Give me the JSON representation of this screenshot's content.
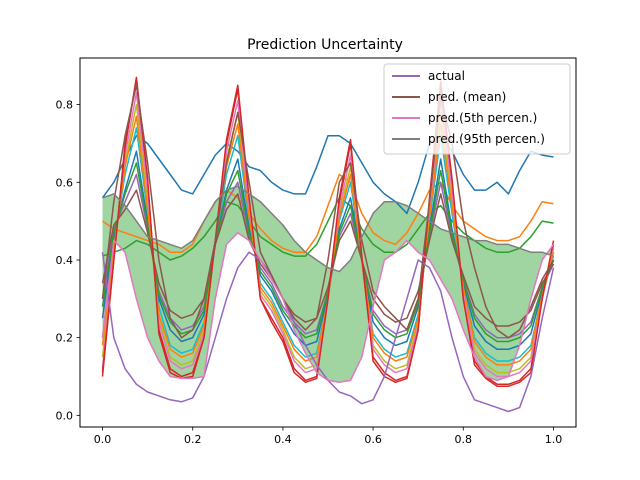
{
  "chart_data": {
    "type": "line",
    "title": "Prediction  Uncertainty",
    "xlabel": "",
    "ylabel": "",
    "xlim": [
      -0.05,
      1.05
    ],
    "ylim": [
      -0.03,
      0.92
    ],
    "xticks": [
      "0.0",
      "0.2",
      "0.4",
      "0.6",
      "0.8",
      "1.0"
    ],
    "yticks": [
      "0.0",
      "0.2",
      "0.4",
      "0.6",
      "0.8"
    ],
    "grid": false,
    "legend_position": "top-right",
    "legend": [
      {
        "label": "actual",
        "color": "#9467bd"
      },
      {
        "label": "pred. (mean)",
        "color": "#8c564b"
      },
      {
        "label": "pred.(5th percen.)",
        "color": "#e377c2"
      },
      {
        "label": "pred.(95th percen.)",
        "color": "#7f7f7f"
      }
    ],
    "band": {
      "color": "#2ca02c",
      "opacity": 0.45
    },
    "x": [
      0.0,
      0.025,
      0.05,
      0.075,
      0.1,
      0.125,
      0.15,
      0.175,
      0.2,
      0.225,
      0.25,
      0.275,
      0.3,
      0.325,
      0.35,
      0.375,
      0.4,
      0.425,
      0.45,
      0.475,
      0.5,
      0.525,
      0.55,
      0.575,
      0.6,
      0.625,
      0.65,
      0.675,
      0.7,
      0.725,
      0.75,
      0.775,
      0.8,
      0.825,
      0.85,
      0.875,
      0.9,
      0.925,
      0.95,
      0.975,
      1.0
    ],
    "series": [
      {
        "name": "actual",
        "color": "#9467bd",
        "values": [
          0.42,
          0.2,
          0.12,
          0.08,
          0.06,
          0.05,
          0.04,
          0.035,
          0.045,
          0.1,
          0.2,
          0.3,
          0.38,
          0.42,
          0.4,
          0.36,
          0.3,
          0.24,
          0.18,
          0.13,
          0.09,
          0.06,
          0.05,
          0.03,
          0.04,
          0.1,
          0.2,
          0.3,
          0.4,
          0.38,
          0.32,
          0.2,
          0.1,
          0.04,
          0.03,
          0.02,
          0.01,
          0.02,
          0.1,
          0.25,
          0.38
        ]
      },
      {
        "name": "pred. (mean)",
        "color": "#8c564b",
        "values": [
          0.3,
          0.55,
          0.72,
          0.85,
          0.65,
          0.4,
          0.25,
          0.2,
          0.22,
          0.3,
          0.45,
          0.65,
          0.78,
          0.6,
          0.42,
          0.36,
          0.3,
          0.25,
          0.22,
          0.25,
          0.4,
          0.6,
          0.65,
          0.45,
          0.32,
          0.28,
          0.25,
          0.22,
          0.3,
          0.55,
          0.82,
          0.7,
          0.5,
          0.38,
          0.28,
          0.22,
          0.2,
          0.22,
          0.28,
          0.35,
          0.4
        ]
      },
      {
        "name": "pred.(5th percen.)",
        "color": "#e377c2",
        "values": [
          0.2,
          0.45,
          0.42,
          0.3,
          0.2,
          0.14,
          0.1,
          0.095,
          0.095,
          0.1,
          0.3,
          0.44,
          0.47,
          0.45,
          0.4,
          0.35,
          0.3,
          0.22,
          0.16,
          0.11,
          0.09,
          0.085,
          0.09,
          0.15,
          0.28,
          0.4,
          0.42,
          0.45,
          0.42,
          0.4,
          0.35,
          0.3,
          0.22,
          0.15,
          0.1,
          0.09,
          0.1,
          0.18,
          0.3,
          0.4,
          0.44
        ]
      },
      {
        "name": "pred.(95th percen.)",
        "color": "#7f7f7f",
        "values": [
          0.56,
          0.57,
          0.54,
          0.5,
          0.46,
          0.45,
          0.44,
          0.43,
          0.45,
          0.5,
          0.55,
          0.58,
          0.59,
          0.57,
          0.55,
          0.52,
          0.49,
          0.45,
          0.42,
          0.4,
          0.38,
          0.37,
          0.4,
          0.46,
          0.52,
          0.55,
          0.55,
          0.54,
          0.52,
          0.5,
          0.48,
          0.47,
          0.46,
          0.45,
          0.45,
          0.44,
          0.44,
          0.43,
          0.42,
          0.42,
          0.41
        ]
      },
      {
        "name": "",
        "color": "#1f77b4",
        "values": [
          0.56,
          0.6,
          0.66,
          0.72,
          0.7,
          0.66,
          0.62,
          0.58,
          0.57,
          0.62,
          0.67,
          0.7,
          0.68,
          0.64,
          0.63,
          0.6,
          0.58,
          0.57,
          0.57,
          0.64,
          0.72,
          0.72,
          0.7,
          0.65,
          0.6,
          0.57,
          0.55,
          0.52,
          0.6,
          0.7,
          0.72,
          0.68,
          0.62,
          0.58,
          0.58,
          0.6,
          0.57,
          0.63,
          0.68,
          0.67,
          0.665
        ]
      },
      {
        "name": "",
        "color": "#ff7f0e",
        "values": [
          0.5,
          0.48,
          0.47,
          0.46,
          0.45,
          0.44,
          0.42,
          0.42,
          0.44,
          0.5,
          0.55,
          0.58,
          0.56,
          0.52,
          0.48,
          0.45,
          0.43,
          0.42,
          0.42,
          0.46,
          0.54,
          0.62,
          0.6,
          0.52,
          0.47,
          0.45,
          0.44,
          0.47,
          0.52,
          0.58,
          0.6,
          0.54,
          0.5,
          0.48,
          0.46,
          0.45,
          0.45,
          0.46,
          0.5,
          0.55,
          0.545
        ]
      },
      {
        "name": "",
        "color": "#2ca02c",
        "values": [
          0.41,
          0.42,
          0.43,
          0.45,
          0.44,
          0.42,
          0.4,
          0.41,
          0.43,
          0.46,
          0.5,
          0.55,
          0.54,
          0.5,
          0.46,
          0.44,
          0.42,
          0.41,
          0.41,
          0.44,
          0.5,
          0.56,
          0.54,
          0.48,
          0.44,
          0.42,
          0.42,
          0.44,
          0.48,
          0.52,
          0.54,
          0.5,
          0.47,
          0.45,
          0.43,
          0.42,
          0.42,
          0.43,
          0.46,
          0.5,
          0.495
        ]
      },
      {
        "name": "",
        "color": "#d62728",
        "values": [
          0.1,
          0.4,
          0.7,
          0.86,
          0.6,
          0.22,
          0.12,
          0.1,
          0.11,
          0.2,
          0.45,
          0.7,
          0.84,
          0.55,
          0.3,
          0.25,
          0.2,
          0.12,
          0.09,
          0.1,
          0.3,
          0.55,
          0.7,
          0.4,
          0.15,
          0.11,
          0.09,
          0.1,
          0.22,
          0.55,
          0.85,
          0.6,
          0.3,
          0.14,
          0.1,
          0.08,
          0.08,
          0.09,
          0.12,
          0.3,
          0.44
        ]
      },
      {
        "name": "",
        "color": "#bcbd22",
        "values": [
          0.15,
          0.42,
          0.65,
          0.8,
          0.55,
          0.25,
          0.15,
          0.13,
          0.14,
          0.22,
          0.45,
          0.66,
          0.78,
          0.52,
          0.32,
          0.28,
          0.22,
          0.15,
          0.12,
          0.13,
          0.3,
          0.52,
          0.64,
          0.4,
          0.18,
          0.14,
          0.12,
          0.13,
          0.24,
          0.52,
          0.78,
          0.56,
          0.32,
          0.17,
          0.13,
          0.11,
          0.11,
          0.12,
          0.15,
          0.3,
          0.42
        ]
      },
      {
        "name": "",
        "color": "#17becf",
        "values": [
          0.2,
          0.44,
          0.62,
          0.74,
          0.52,
          0.28,
          0.18,
          0.16,
          0.17,
          0.24,
          0.44,
          0.62,
          0.72,
          0.5,
          0.34,
          0.3,
          0.24,
          0.18,
          0.15,
          0.16,
          0.3,
          0.5,
          0.6,
          0.4,
          0.21,
          0.17,
          0.15,
          0.16,
          0.26,
          0.5,
          0.72,
          0.52,
          0.33,
          0.2,
          0.16,
          0.14,
          0.14,
          0.15,
          0.18,
          0.31,
          0.41
        ]
      },
      {
        "name": "",
        "color": "#1f77b4",
        "values": [
          0.25,
          0.46,
          0.58,
          0.68,
          0.5,
          0.3,
          0.22,
          0.19,
          0.2,
          0.26,
          0.44,
          0.58,
          0.66,
          0.48,
          0.36,
          0.32,
          0.26,
          0.21,
          0.18,
          0.19,
          0.31,
          0.48,
          0.56,
          0.4,
          0.24,
          0.2,
          0.18,
          0.19,
          0.28,
          0.48,
          0.66,
          0.48,
          0.34,
          0.23,
          0.19,
          0.17,
          0.17,
          0.18,
          0.21,
          0.32,
          0.4
        ]
      },
      {
        "name": "",
        "color": "#9467bd",
        "values": [
          0.3,
          0.48,
          0.55,
          0.62,
          0.48,
          0.32,
          0.25,
          0.22,
          0.23,
          0.28,
          0.44,
          0.55,
          0.6,
          0.46,
          0.38,
          0.34,
          0.28,
          0.24,
          0.21,
          0.22,
          0.32,
          0.46,
          0.52,
          0.4,
          0.27,
          0.23,
          0.21,
          0.22,
          0.3,
          0.46,
          0.6,
          0.46,
          0.35,
          0.26,
          0.22,
          0.2,
          0.2,
          0.21,
          0.24,
          0.33,
          0.39
        ]
      },
      {
        "name": "",
        "color": "#e377c2",
        "values": [
          0.12,
          0.41,
          0.67,
          0.83,
          0.58,
          0.24,
          0.14,
          0.12,
          0.13,
          0.21,
          0.45,
          0.68,
          0.81,
          0.53,
          0.31,
          0.27,
          0.21,
          0.14,
          0.11,
          0.12,
          0.3,
          0.53,
          0.67,
          0.4,
          0.17,
          0.13,
          0.11,
          0.12,
          0.23,
          0.53,
          0.81,
          0.58,
          0.31,
          0.16,
          0.12,
          0.1,
          0.1,
          0.11,
          0.14,
          0.3,
          0.43
        ]
      },
      {
        "name": "",
        "color": "#ff7f0e",
        "values": [
          0.18,
          0.43,
          0.64,
          0.77,
          0.53,
          0.26,
          0.17,
          0.15,
          0.16,
          0.23,
          0.45,
          0.64,
          0.75,
          0.51,
          0.33,
          0.29,
          0.23,
          0.17,
          0.14,
          0.15,
          0.3,
          0.51,
          0.62,
          0.4,
          0.2,
          0.16,
          0.14,
          0.15,
          0.25,
          0.51,
          0.75,
          0.54,
          0.33,
          0.19,
          0.15,
          0.13,
          0.13,
          0.14,
          0.17,
          0.31,
          0.42
        ]
      },
      {
        "name": "",
        "color": "#2ca02c",
        "values": [
          0.28,
          0.47,
          0.57,
          0.65,
          0.49,
          0.31,
          0.24,
          0.21,
          0.22,
          0.27,
          0.44,
          0.57,
          0.63,
          0.47,
          0.37,
          0.33,
          0.27,
          0.23,
          0.2,
          0.21,
          0.32,
          0.47,
          0.54,
          0.4,
          0.26,
          0.22,
          0.2,
          0.21,
          0.29,
          0.47,
          0.63,
          0.47,
          0.35,
          0.25,
          0.21,
          0.19,
          0.19,
          0.2,
          0.23,
          0.33,
          0.4
        ]
      },
      {
        "name": "",
        "color": "#8c564b",
        "values": [
          0.34,
          0.49,
          0.53,
          0.58,
          0.47,
          0.34,
          0.27,
          0.25,
          0.26,
          0.3,
          0.44,
          0.53,
          0.57,
          0.45,
          0.39,
          0.35,
          0.3,
          0.26,
          0.24,
          0.25,
          0.33,
          0.45,
          0.5,
          0.4,
          0.3,
          0.26,
          0.24,
          0.25,
          0.32,
          0.45,
          0.57,
          0.45,
          0.36,
          0.28,
          0.25,
          0.23,
          0.23,
          0.24,
          0.27,
          0.34,
          0.39
        ]
      },
      {
        "name": "",
        "color": "#d62728",
        "values": [
          0.11,
          0.4,
          0.69,
          0.87,
          0.61,
          0.21,
          0.11,
          0.095,
          0.1,
          0.2,
          0.45,
          0.71,
          0.85,
          0.56,
          0.3,
          0.24,
          0.19,
          0.11,
          0.085,
          0.095,
          0.3,
          0.56,
          0.71,
          0.41,
          0.14,
          0.1,
          0.085,
          0.095,
          0.22,
          0.56,
          0.86,
          0.61,
          0.3,
          0.13,
          0.095,
          0.075,
          0.075,
          0.085,
          0.11,
          0.3,
          0.45
        ]
      }
    ]
  }
}
